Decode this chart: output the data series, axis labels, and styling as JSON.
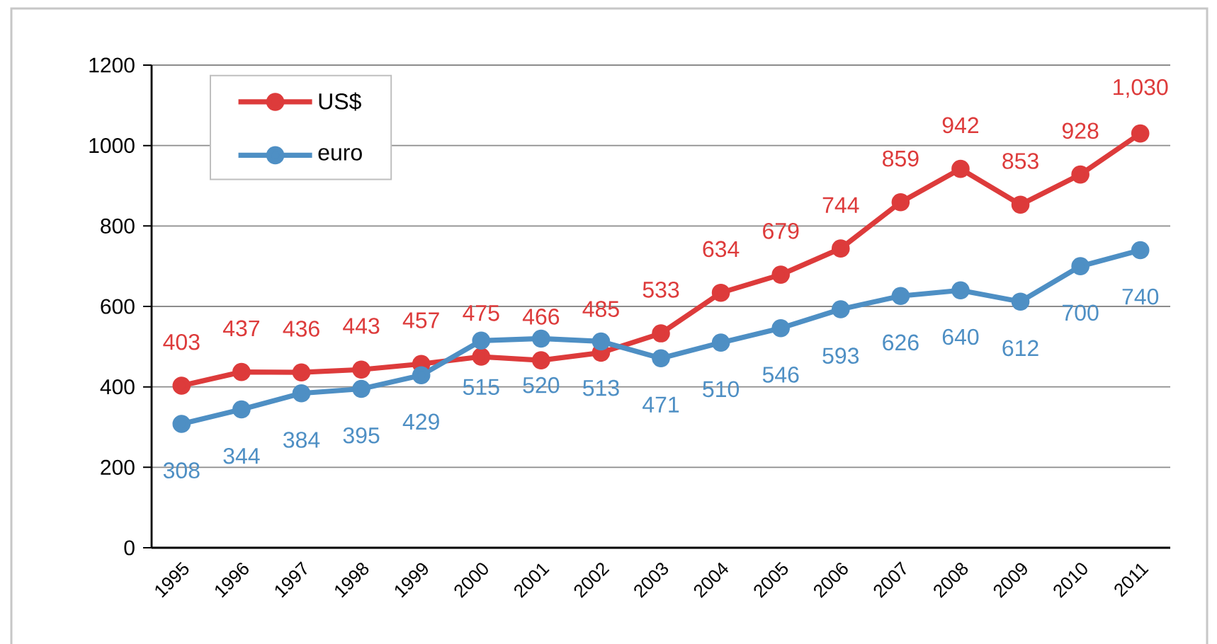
{
  "chart_data": {
    "type": "line",
    "categories": [
      "1995",
      "1996",
      "1997",
      "1998",
      "1999",
      "2000",
      "2001",
      "2002",
      "2003",
      "2004",
      "2005",
      "2006",
      "2007",
      "2008",
      "2009",
      "2010",
      "2011"
    ],
    "series": [
      {
        "name": "US$",
        "color": "#dd3b3b",
        "values": [
          403,
          437,
          436,
          443,
          457,
          475,
          466,
          485,
          533,
          634,
          679,
          744,
          859,
          942,
          853,
          928,
          1030
        ],
        "value_labels": [
          "403",
          "437",
          "436",
          "443",
          "457",
          "475",
          "466",
          "485",
          "533",
          "634",
          "679",
          "744",
          "859",
          "942",
          "853",
          "928",
          "1,030"
        ]
      },
      {
        "name": "euro",
        "color": "#4e8fc4",
        "values": [
          308,
          344,
          384,
          395,
          429,
          515,
          520,
          513,
          471,
          510,
          546,
          593,
          626,
          640,
          612,
          700,
          740
        ],
        "value_labels": [
          "308",
          "344",
          "384",
          "395",
          "429",
          "515",
          "520",
          "513",
          "471",
          "510",
          "546",
          "593",
          "626",
          "640",
          "612",
          "700",
          "740"
        ]
      }
    ],
    "ylim": [
      0,
      1200
    ],
    "yticks": [
      0,
      200,
      400,
      600,
      800,
      1000,
      1200
    ],
    "grid": "y",
    "legend": "top left",
    "marker": "circle",
    "line_style": "solid"
  }
}
